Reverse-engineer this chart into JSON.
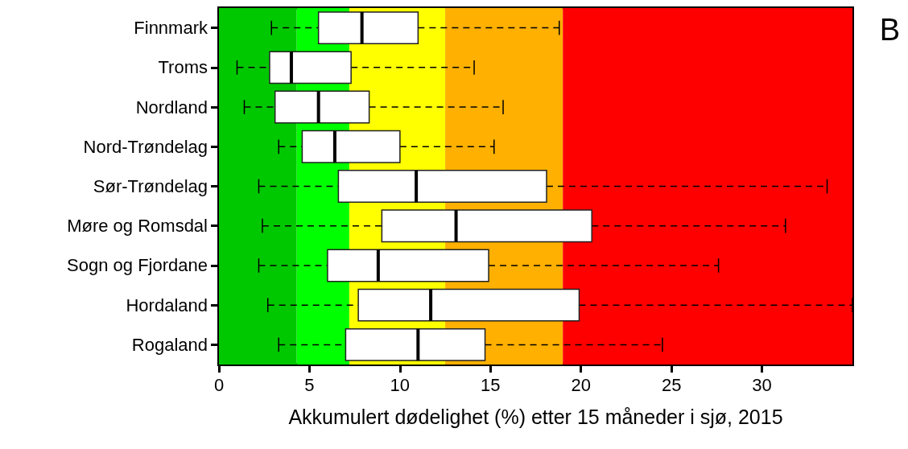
{
  "chart_data": {
    "type": "box",
    "orientation": "horizontal",
    "xlabel": "Akkumulert dødelighet (%) etter 15 måneder i sjø, 2015",
    "annotations": [
      "B"
    ],
    "categories": [
      "Finnmark",
      "Troms",
      "Nordland",
      "Nord-Trøndelag",
      "Sør-Trøndelag",
      "Møre og Romsdal",
      "Sogn og Fjordane",
      "Hordaland",
      "Rogaland"
    ],
    "boxes": [
      {
        "low": 2.9,
        "q1": 5.5,
        "median": 7.9,
        "q3": 11.0,
        "high": 18.8
      },
      {
        "low": 1.0,
        "q1": 2.8,
        "median": 4.0,
        "q3": 7.3,
        "high": 14.1
      },
      {
        "low": 1.4,
        "q1": 3.1,
        "median": 5.5,
        "q3": 8.3,
        "high": 15.7
      },
      {
        "low": 3.3,
        "q1": 4.6,
        "median": 6.4,
        "q3": 10.0,
        "high": 15.2
      },
      {
        "low": 2.2,
        "q1": 6.6,
        "median": 10.9,
        "q3": 18.1,
        "high": 33.6
      },
      {
        "low": 2.4,
        "q1": 9.0,
        "median": 13.1,
        "q3": 20.6,
        "high": 31.3
      },
      {
        "low": 2.2,
        "q1": 6.0,
        "median": 8.8,
        "q3": 14.9,
        "high": 27.6
      },
      {
        "low": 2.7,
        "q1": 7.7,
        "median": 11.7,
        "q3": 19.9,
        "high": 35
      },
      {
        "low": 3.3,
        "q1": 7.0,
        "median": 11.0,
        "q3": 14.7,
        "high": 24.5
      }
    ],
    "color": "#ffffff",
    "xlim": [
      0,
      35
    ],
    "xticks": [
      0,
      5,
      10,
      15,
      20,
      25,
      30
    ],
    "bands": [
      {
        "axis": "x",
        "from": 0,
        "to": 4.3,
        "color": "#00c800"
      },
      {
        "axis": "x",
        "from": 4.3,
        "to": 7.2,
        "color": "#00ff00"
      },
      {
        "axis": "x",
        "from": 7.2,
        "to": 12.5,
        "color": "#ffff00"
      },
      {
        "axis": "x",
        "from": 12.5,
        "to": 19.0,
        "color": "#ffb000"
      },
      {
        "axis": "x",
        "from": 19.0,
        "to": 35,
        "color": "#ff0000"
      }
    ],
    "line_style": "dashed"
  }
}
